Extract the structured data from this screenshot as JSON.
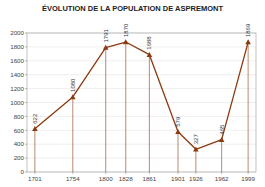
{
  "chart_data": {
    "type": "line",
    "title": "ÉVOLUTION DE LA POPULATION DE ASPREMONT",
    "x": [
      1701,
      1754,
      1800,
      1828,
      1861,
      1901,
      1926,
      1962,
      1999
    ],
    "values": [
      622,
      1080,
      1791,
      1870,
      1688,
      579,
      327,
      465,
      1869
    ],
    "color": "#8B3A10",
    "marker": "triangle",
    "data_labels": true,
    "grid": true,
    "xlim": [
      1690,
      2010
    ],
    "xticks": [
      1701,
      1754,
      1800,
      1828,
      1861,
      1901,
      1926,
      1962,
      1999
    ],
    "ylim": [
      0,
      2000
    ],
    "yticks": [
      0,
      200,
      400,
      600,
      800,
      1000,
      1200,
      1400,
      1600,
      1800,
      2000
    ]
  }
}
